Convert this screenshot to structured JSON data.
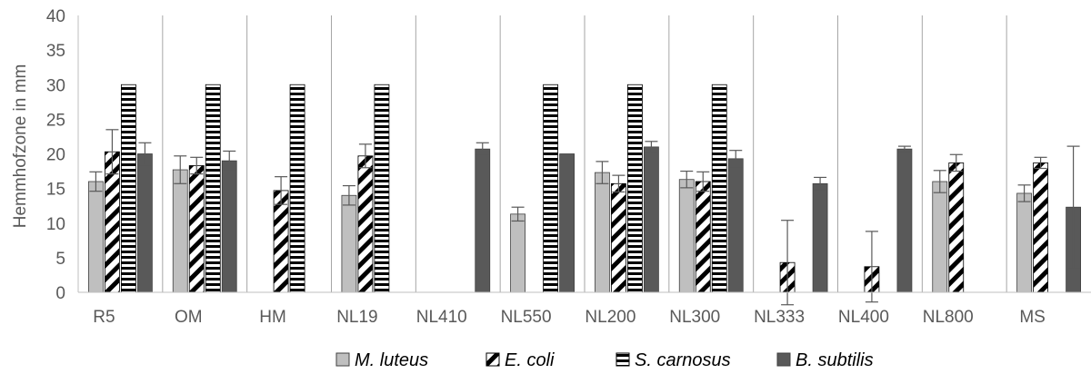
{
  "chart_data": {
    "type": "bar",
    "title": "",
    "xlabel": "",
    "ylabel": "Hemmhofzone in mm",
    "ylim": [
      0,
      40
    ],
    "yticks": [
      "0",
      "5",
      "10",
      "15",
      "20",
      "25",
      "30",
      "35",
      "40"
    ],
    "grid": "vertical category separators",
    "legend_position": "bottom",
    "categories": [
      "R5",
      "OM",
      "HM",
      "NL19",
      "NL410",
      "NL550",
      "NL200",
      "NL300",
      "NL333",
      "NL400",
      "NL800",
      "MS"
    ],
    "series": [
      {
        "name": "M. luteus",
        "pattern": "solid-light-gray",
        "color": "#bfbfbf",
        "values": [
          16,
          17.7,
          0,
          14,
          0,
          11.3,
          17.3,
          16.3,
          0,
          0,
          16,
          14.3
        ],
        "errors": [
          1.4,
          2,
          0,
          1.4,
          0,
          1,
          1.6,
          1.2,
          0,
          0,
          1.6,
          1.2
        ]
      },
      {
        "name": "E. coli",
        "pattern": "wide-diagonal-stripes",
        "color": "#000000",
        "values": [
          20.3,
          18.3,
          14.7,
          19.7,
          0,
          0,
          15.7,
          16,
          4.3,
          3.7,
          18.7,
          18.7
        ],
        "errors": [
          3.2,
          1.2,
          2,
          1.7,
          0,
          0,
          1.2,
          1.4,
          6.1,
          5.1,
          1.2,
          0.8
        ]
      },
      {
        "name": "S. carnosus",
        "pattern": "horizontal-stripes",
        "color": "#000000",
        "values": [
          30,
          30,
          30,
          30,
          0,
          30,
          30,
          30,
          0,
          0,
          0,
          0
        ],
        "errors": [
          0,
          0,
          0,
          0,
          0,
          0,
          0,
          0,
          0,
          0,
          0,
          0
        ]
      },
      {
        "name": "B. subtilis",
        "pattern": "solid-dark-gray",
        "color": "#595959",
        "values": [
          20,
          19,
          0,
          0,
          20.7,
          20,
          21,
          19.3,
          15.7,
          20.7,
          0,
          12.3
        ],
        "errors": [
          1.6,
          1.4,
          0,
          0,
          0.9,
          0,
          0.8,
          1.2,
          0.9,
          0.4,
          0,
          8.8
        ]
      }
    ]
  }
}
